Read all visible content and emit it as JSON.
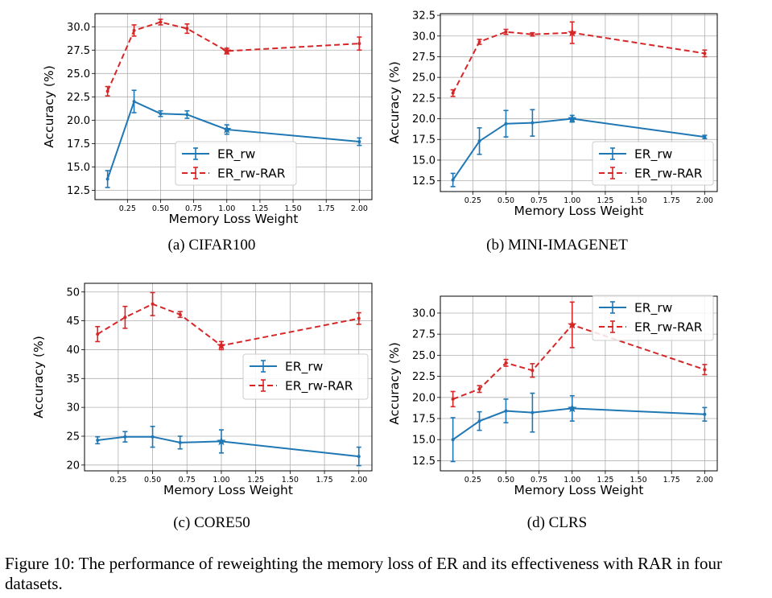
{
  "figure": {
    "caption": "Figure 10: The performance of reweighting the memory loss of ER and its effectiveness with RAR in four datasets.",
    "subcaptions": [
      "(a) CIFAR100",
      "(b) MINI-IMAGENET",
      "(c) CORE50",
      "(d) CLRS"
    ]
  },
  "colors": {
    "er_rw": "#1f77b4",
    "er_rw_rar": "#d62728",
    "grid": "#b0b0b0"
  },
  "chart_data": [
    {
      "type": "line",
      "xlabel": "Memory Loss Weight",
      "ylabel": "Accuracy (%)",
      "xticks": [
        0.25,
        0.5,
        0.75,
        1.0,
        1.25,
        1.5,
        1.75,
        2.0
      ],
      "xtick_labels": [
        "0.25",
        "0.50",
        "0.75",
        "1.00",
        "1.25",
        "1.50",
        "1.75",
        "2.00"
      ],
      "xlim": [
        0.005,
        2.095
      ],
      "yticks": [
        12.5,
        15.0,
        17.5,
        20.0,
        22.5,
        25.0,
        27.5,
        30.0
      ],
      "ytick_labels": [
        "12.5",
        "15.0",
        "17.5",
        "20.0",
        "22.5",
        "25.0",
        "27.5",
        "30.0"
      ],
      "ylim": [
        11.5,
        31.4
      ],
      "grid": true,
      "legend_position": "lower-right",
      "star_x": 1.0,
      "x": [
        0.1,
        0.3,
        0.5,
        0.7,
        1.0,
        2.0
      ],
      "series": [
        {
          "name": "ER_rw",
          "style": "solid",
          "values": [
            13.7,
            22.0,
            20.7,
            20.6,
            19.0,
            17.7
          ],
          "errors": [
            0.9,
            1.2,
            0.3,
            0.4,
            0.5,
            0.4
          ]
        },
        {
          "name": "ER_rw-RAR",
          "style": "dashed",
          "values": [
            23.1,
            29.6,
            30.5,
            29.8,
            27.4,
            28.2
          ],
          "errors": [
            0.5,
            0.6,
            0.3,
            0.5,
            0.3,
            0.7
          ]
        }
      ]
    },
    {
      "type": "line",
      "xlabel": "Memory Loss Weight",
      "ylabel": "Accuracy (%)",
      "xticks": [
        0.25,
        0.5,
        0.75,
        1.0,
        1.25,
        1.5,
        1.75,
        2.0
      ],
      "xtick_labels": [
        "0.25",
        "0.50",
        "0.75",
        "1.00",
        "1.25",
        "1.50",
        "1.75",
        "2.00"
      ],
      "xlim": [
        0.005,
        2.095
      ],
      "yticks": [
        12.5,
        15.0,
        17.5,
        20.0,
        22.5,
        25.0,
        27.5,
        30.0,
        32.5
      ],
      "ytick_labels": [
        "12.5",
        "15.0",
        "17.5",
        "20.0",
        "22.5",
        "25.0",
        "27.5",
        "30.0",
        "32.5"
      ],
      "ylim": [
        11.2,
        32.7
      ],
      "grid": true,
      "legend_position": "lower-right",
      "star_x": 1.0,
      "x": [
        0.1,
        0.3,
        0.5,
        0.7,
        1.0,
        2.0
      ],
      "series": [
        {
          "name": "ER_rw",
          "style": "solid",
          "values": [
            12.6,
            17.3,
            19.4,
            19.5,
            20.0,
            17.8
          ],
          "errors": [
            0.8,
            1.6,
            1.6,
            1.6,
            0.4,
            0.2
          ]
        },
        {
          "name": "ER_rw-RAR",
          "style": "dashed",
          "values": [
            23.1,
            29.3,
            30.5,
            30.2,
            30.4,
            27.9
          ],
          "errors": [
            0.4,
            0.3,
            0.3,
            0.2,
            1.3,
            0.4
          ]
        }
      ]
    },
    {
      "type": "line",
      "xlabel": "Memory Loss Weight",
      "ylabel": "Accuracy (%)",
      "xticks": [
        0.25,
        0.5,
        0.75,
        1.0,
        1.25,
        1.5,
        1.75,
        2.0
      ],
      "xtick_labels": [
        "0.25",
        "0.50",
        "0.75",
        "1.00",
        "1.25",
        "1.50",
        "1.75",
        "2.00"
      ],
      "xlim": [
        0.005,
        2.095
      ],
      "yticks": [
        20,
        25,
        30,
        35,
        40,
        45,
        50
      ],
      "ytick_labels": [
        "20",
        "25",
        "30",
        "35",
        "40",
        "45",
        "50"
      ],
      "ylim": [
        19.0,
        51.5
      ],
      "grid": true,
      "legend_position": "center-right",
      "star_x": 1.0,
      "x": [
        0.1,
        0.3,
        0.5,
        0.7,
        1.0,
        2.0
      ],
      "series": [
        {
          "name": "ER_rw",
          "style": "solid",
          "values": [
            24.3,
            24.9,
            24.9,
            23.9,
            24.1,
            21.5
          ],
          "errors": [
            0.6,
            0.9,
            1.8,
            1.1,
            2.0,
            1.6
          ]
        },
        {
          "name": "ER_rw-RAR",
          "style": "dashed",
          "values": [
            42.7,
            45.6,
            47.9,
            46.1,
            40.7,
            45.4
          ],
          "errors": [
            1.3,
            1.9,
            2.0,
            0.5,
            0.7,
            1.0
          ]
        }
      ]
    },
    {
      "type": "line",
      "xlabel": "Memory Loss Weight",
      "ylabel": "Accuracy (%)",
      "xticks": [
        0.25,
        0.5,
        0.75,
        1.0,
        1.25,
        1.5,
        1.75,
        2.0
      ],
      "xtick_labels": [
        "0.25",
        "0.50",
        "0.75",
        "1.00",
        "1.25",
        "1.50",
        "1.75",
        "2.00"
      ],
      "xlim": [
        0.005,
        2.095
      ],
      "yticks": [
        12.5,
        15.0,
        17.5,
        20.0,
        22.5,
        25.0,
        27.5,
        30.0
      ],
      "ytick_labels": [
        "12.5",
        "15.0",
        "17.5",
        "20.0",
        "22.5",
        "25.0",
        "27.5",
        "30.0"
      ],
      "ylim": [
        11.3,
        32.0
      ],
      "grid": true,
      "legend_position": "upper-right",
      "star_x": 1.0,
      "x": [
        0.1,
        0.3,
        0.5,
        0.7,
        1.0,
        2.0
      ],
      "series": [
        {
          "name": "ER_rw",
          "style": "solid",
          "values": [
            15.0,
            17.2,
            18.4,
            18.2,
            18.7,
            18.0
          ],
          "errors": [
            2.6,
            1.1,
            1.4,
            2.3,
            1.5,
            0.8
          ]
        },
        {
          "name": "ER_rw-RAR",
          "style": "dashed",
          "values": [
            19.8,
            21.0,
            24.1,
            23.2,
            28.6,
            23.3
          ],
          "errors": [
            0.9,
            0.4,
            0.4,
            0.8,
            2.7,
            0.6
          ]
        }
      ]
    }
  ]
}
